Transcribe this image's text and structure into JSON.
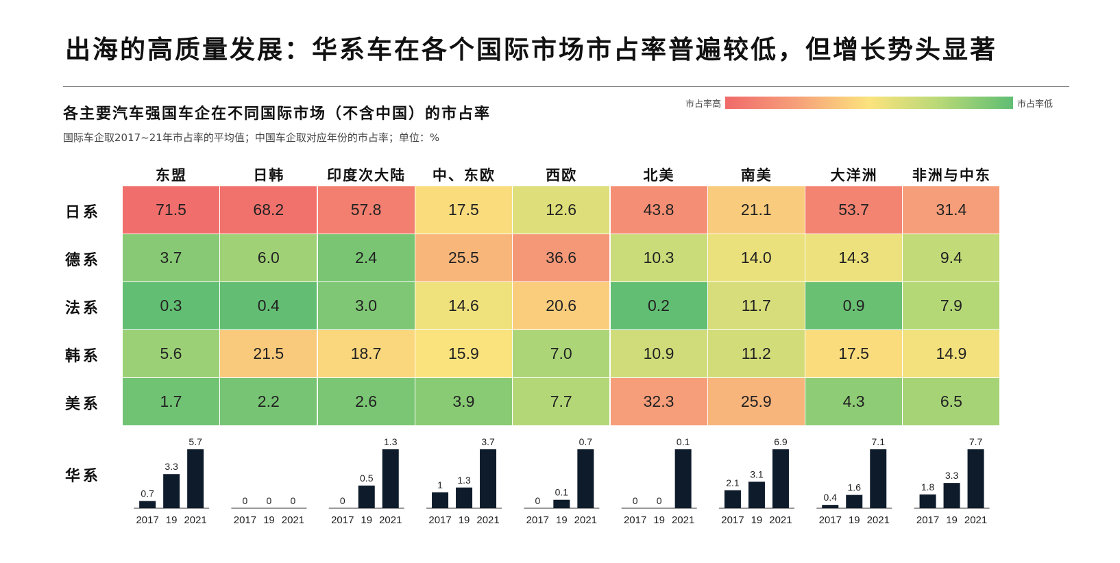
{
  "page": {
    "title": "出海的高质量发展：华系车在各个国际市场市占率普遍较低，但增长势头显著",
    "subtitle": "各主要汽车强国车企在不同国际市场（不含中国）的市占率",
    "note": "国际车企取2017~21年市占率的平均值；中国车企取对应年份的市占率；单位：%",
    "legend_high": "市占率高",
    "legend_low": "市占率低"
  },
  "colors": {
    "high": "#f06a6a",
    "mid": "#fbe37d",
    "low": "#5fbd73",
    "bar": "#0e1b2b"
  },
  "chart_data": [
    {
      "type": "heatmap",
      "title": "",
      "columns": [
        "东盟",
        "日韩",
        "印度次大陆",
        "中、东欧",
        "西欧",
        "北美",
        "南美",
        "大洋洲",
        "非洲与中东"
      ],
      "rows": [
        "日系",
        "德系",
        "法系",
        "韩系",
        "美系"
      ],
      "values": [
        [
          71.5,
          68.2,
          57.8,
          17.5,
          12.6,
          43.8,
          21.1,
          53.7,
          31.4
        ],
        [
          3.7,
          6.0,
          2.4,
          25.5,
          36.6,
          10.3,
          14.0,
          14.3,
          9.4
        ],
        [
          0.3,
          0.4,
          3.0,
          14.6,
          20.6,
          0.2,
          11.7,
          0.9,
          7.9
        ],
        [
          5.6,
          21.5,
          18.7,
          15.9,
          7.0,
          10.9,
          11.2,
          17.5,
          14.9
        ],
        [
          1.7,
          2.2,
          2.6,
          3.9,
          7.7,
          32.3,
          25.9,
          4.3,
          6.5
        ]
      ],
      "value_labels": [
        [
          "71.5",
          "68.2",
          "57.8",
          "17.5",
          "12.6",
          "43.8",
          "21.1",
          "53.7",
          "31.4"
        ],
        [
          "3.7",
          "6.0",
          "2.4",
          "25.5",
          "36.6",
          "10.3",
          "14.0",
          "14.3",
          "9.4"
        ],
        [
          "0.3",
          "0.4",
          "3.0",
          "14.6",
          "20.6",
          "0.2",
          "11.7",
          "0.9",
          "7.9"
        ],
        [
          "5.6",
          "21.5",
          "18.7",
          "15.9",
          "7.0",
          "10.9",
          "11.2",
          "17.5",
          "14.9"
        ],
        [
          "1.7",
          "2.2",
          "2.6",
          "3.9",
          "7.7",
          "32.3",
          "25.9",
          "4.3",
          "6.5"
        ]
      ]
    },
    {
      "type": "bar",
      "row_label": "华系",
      "categories": [
        "2017",
        "19",
        "2021"
      ],
      "per_region": [
        {
          "region": "东盟",
          "values": [
            0.7,
            3.3,
            5.7
          ]
        },
        {
          "region": "日韩",
          "values": [
            0,
            0,
            0
          ]
        },
        {
          "region": "印度次大陆",
          "values": [
            0,
            0.5,
            1.3
          ]
        },
        {
          "region": "中、东欧",
          "values": [
            1.0,
            1.3,
            3.7
          ]
        },
        {
          "region": "西欧",
          "values": [
            0,
            0.1,
            0.7
          ]
        },
        {
          "region": "北美",
          "values": [
            0,
            0,
            0.1
          ]
        },
        {
          "region": "南美",
          "values": [
            2.1,
            3.1,
            6.9
          ]
        },
        {
          "region": "大洋洲",
          "values": [
            0.4,
            1.6,
            7.1
          ]
        },
        {
          "region": "非洲与中东",
          "values": [
            1.8,
            3.3,
            7.7
          ]
        }
      ],
      "note": "bars within each region are scaled so the 2021 bar is full height"
    }
  ]
}
